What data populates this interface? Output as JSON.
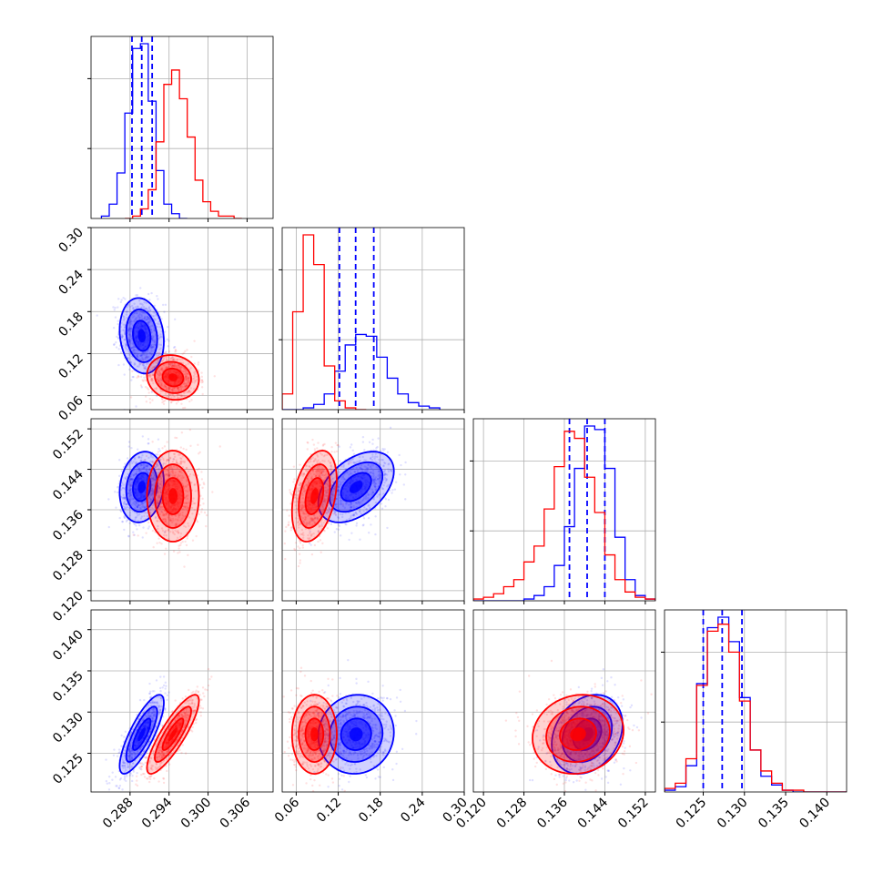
{
  "colors": {
    "series_a": "#0000ff",
    "series_b": "#ff0000",
    "grid": "#b0b0b0",
    "axis": "#000000"
  },
  "chart_data": {
    "type": "corner",
    "grid": true,
    "parameters": [
      {
        "range": [
          0.282,
          0.31
        ],
        "ticks": [
          0.288,
          0.294,
          0.3,
          0.306
        ],
        "tick_labels": [
          "0.288",
          "0.294",
          "0.300",
          "0.306"
        ]
      },
      {
        "range": [
          0.04,
          0.3
        ],
        "ticks": [
          0.06,
          0.12,
          0.18,
          0.24,
          0.3
        ],
        "tick_labels": [
          "0.06",
          "0.12",
          "0.18",
          "0.24",
          "0.30"
        ]
      },
      {
        "range": [
          0.118,
          0.154
        ],
        "ticks": [
          0.12,
          0.128,
          0.136,
          0.144,
          0.152
        ],
        "tick_labels": [
          "0.120",
          "0.128",
          "0.136",
          "0.144",
          "0.152"
        ]
      },
      {
        "range": [
          0.1203,
          0.1424
        ],
        "ticks": [
          0.125,
          0.13,
          0.135,
          0.14
        ],
        "tick_labels": [
          "0.125",
          "0.130",
          "0.135",
          "0.140"
        ]
      }
    ],
    "series": [
      {
        "color": "#0000ff",
        "mean": [
          0.2898,
          0.1455,
          0.1405,
          0.1273
        ],
        "std": [
          0.0017,
          0.027,
          0.0035,
          0.0024
        ],
        "corr": [
          [
            0,
            1,
            -0.15
          ],
          [
            0,
            2,
            0.15
          ],
          [
            0,
            3,
            0.8
          ],
          [
            1,
            2,
            0.45
          ],
          [
            1,
            3,
            0.05
          ],
          [
            2,
            3,
            0.25
          ]
        ],
        "quantiles": [
          0.16,
          0.5,
          0.84
        ],
        "quantile_lines": [
          [
            0.2883,
            0.2898,
            0.2914
          ],
          [
            0.1217,
            0.1449,
            0.1708
          ],
          [
            0.137,
            0.1405,
            0.144
          ],
          [
            0.125,
            0.1273,
            0.1297
          ]
        ],
        "histograms": [
          {
            "edges": [
              0.2836,
              0.2848,
              0.286,
              0.2872,
              0.2884,
              0.2896,
              0.2908,
              0.292,
              0.2932,
              0.2944,
              0.2956,
              0.2968
            ],
            "counts": [
              1,
              6,
              19,
              44,
              71,
              73,
              49,
              20,
              6,
              2,
              0
            ]
          },
          {
            "edges": [
              0.04,
              0.055,
              0.07,
              0.085,
              0.1,
              0.115,
              0.13,
              0.145,
              0.16,
              0.175,
              0.19,
              0.205,
              0.22,
              0.235,
              0.25,
              0.265
            ],
            "counts": [
              0,
              0,
              1,
              3,
              9,
              22,
              37,
              43,
              42,
              30,
              18,
              9,
              4,
              2,
              1
            ]
          },
          {
            "edges": [
              0.118,
              0.12,
              0.122,
              0.124,
              0.126,
              0.128,
              0.13,
              0.132,
              0.134,
              0.136,
              0.138,
              0.14,
              0.142,
              0.144,
              0.146,
              0.148,
              0.15,
              0.152,
              0.154
            ],
            "counts": [
              0,
              0,
              0,
              0,
              0,
              1,
              3,
              8,
              20,
              42,
              75,
              99,
              97,
              75,
              36,
              12,
              3,
              1
            ]
          },
          {
            "edges": [
              0.1203,
              0.1216,
              0.1229,
              0.1242,
              0.1255,
              0.1268,
              0.1281,
              0.1294,
              0.1307,
              0.132,
              0.1333,
              0.1346,
              0.1359,
              0.1372,
              0.1385,
              0.1398,
              0.1411,
              0.1424
            ],
            "counts": [
              1,
              3,
              15,
              62,
              94,
              100,
              86,
              54,
              24,
              9,
              4,
              1,
              0,
              0,
              0,
              0,
              0
            ]
          }
        ]
      },
      {
        "color": "#ff0000",
        "mean": [
          0.2946,
          0.086,
          0.1387,
          0.1273
        ],
        "std": [
          0.002,
          0.016,
          0.0045,
          0.0024
        ],
        "corr": [
          [
            0,
            1,
            -0.1
          ],
          [
            0,
            2,
            0.0
          ],
          [
            0,
            3,
            0.85
          ],
          [
            1,
            2,
            0.35
          ],
          [
            1,
            3,
            0.0
          ],
          [
            2,
            3,
            0.1
          ]
        ],
        "quantiles": [
          0.16,
          0.5,
          0.84
        ],
        "quantile_lines": [],
        "histograms": [
          {
            "edges": [
              0.2872,
              0.2884,
              0.2896,
              0.2908,
              0.292,
              0.2932,
              0.2944,
              0.2956,
              0.2968,
              0.298,
              0.2992,
              0.3004,
              0.3016,
              0.3028,
              0.304,
              0.3052
            ],
            "counts": [
              0,
              1,
              4,
              12,
              32,
              56,
              62,
              50,
              34,
              16,
              7,
              3,
              1,
              1,
              0
            ]
          },
          {
            "edges": [
              0.04,
              0.055,
              0.07,
              0.085,
              0.1,
              0.115,
              0.13,
              0.145,
              0.16
            ],
            "counts": [
              9,
              56,
              100,
              83,
              25,
              5,
              1,
              0
            ]
          },
          {
            "edges": [
              0.118,
              0.12,
              0.122,
              0.124,
              0.126,
              0.128,
              0.13,
              0.132,
              0.134,
              0.136,
              0.138,
              0.14,
              0.142,
              0.144,
              0.146,
              0.148,
              0.15,
              0.152,
              0.154
            ],
            "counts": [
              1,
              2,
              4,
              8,
              12,
              22,
              31,
              52,
              76,
              96,
              92,
              70,
              50,
              26,
              12,
              5,
              2,
              1
            ]
          },
          {
            "edges": [
              0.1203,
              0.1216,
              0.1229,
              0.1242,
              0.1255,
              0.1268,
              0.1281,
              0.1294,
              0.1307,
              0.132,
              0.1333,
              0.1346,
              0.1359,
              0.1372,
              0.1385,
              0.1398,
              0.1411,
              0.1424
            ],
            "counts": [
              2,
              5,
              19,
              61,
              92,
              96,
              80,
              52,
              24,
              12,
              5,
              1,
              1,
              0,
              0,
              0,
              0
            ]
          }
        ]
      }
    ]
  }
}
